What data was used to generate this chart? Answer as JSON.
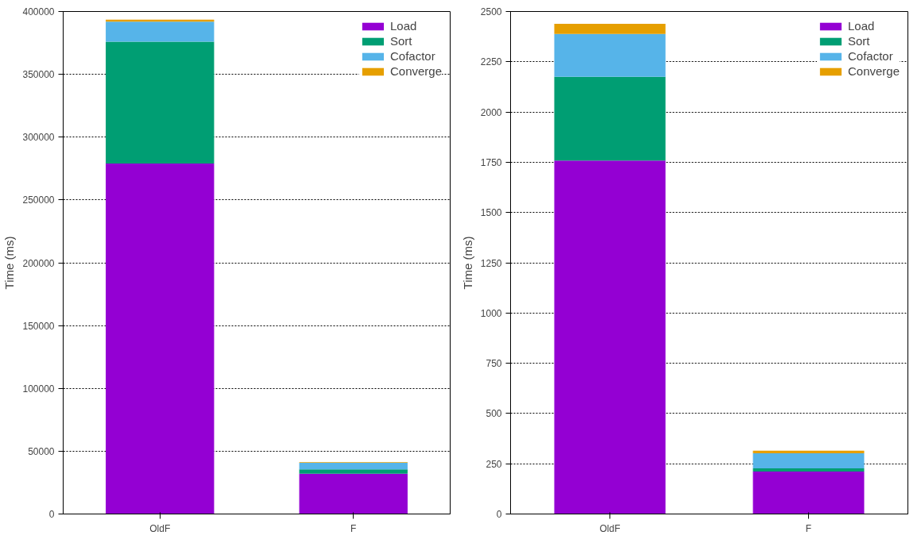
{
  "chart_data": [
    {
      "type": "bar",
      "stacked": true,
      "ylabel": "Time (ms)",
      "categories": [
        "OldF",
        "F"
      ],
      "series": [
        {
          "name": "Load",
          "color": "#9400d3",
          "values": [
            279000,
            32000
          ]
        },
        {
          "name": "Sort",
          "color": "#009e73",
          "values": [
            97000,
            3500
          ]
        },
        {
          "name": "Cofactor",
          "color": "#56b4e9",
          "values": [
            16000,
            5300
          ]
        },
        {
          "name": "Converge",
          "color": "#e69f00",
          "values": [
            1500,
            400
          ]
        }
      ],
      "ylim": [
        0,
        400000
      ],
      "yticks": [
        0,
        50000,
        100000,
        150000,
        200000,
        250000,
        300000,
        350000,
        400000
      ],
      "grid": "y",
      "legend": "top right"
    },
    {
      "type": "bar",
      "stacked": true,
      "ylabel": "Time (ms)",
      "categories": [
        "OldF",
        "F"
      ],
      "series": [
        {
          "name": "Load",
          "color": "#9400d3",
          "values": [
            1758,
            211
          ]
        },
        {
          "name": "Sort",
          "color": "#009e73",
          "values": [
            417,
            16
          ]
        },
        {
          "name": "Cofactor",
          "color": "#56b4e9",
          "values": [
            213,
            75
          ]
        },
        {
          "name": "Converge",
          "color": "#e69f00",
          "values": [
            51,
            13
          ]
        }
      ],
      "ylim": [
        0,
        2500
      ],
      "yticks": [
        0,
        250,
        500,
        750,
        1000,
        1250,
        1500,
        1750,
        2000,
        2250,
        2500
      ],
      "grid": "y",
      "legend": "top right"
    }
  ]
}
